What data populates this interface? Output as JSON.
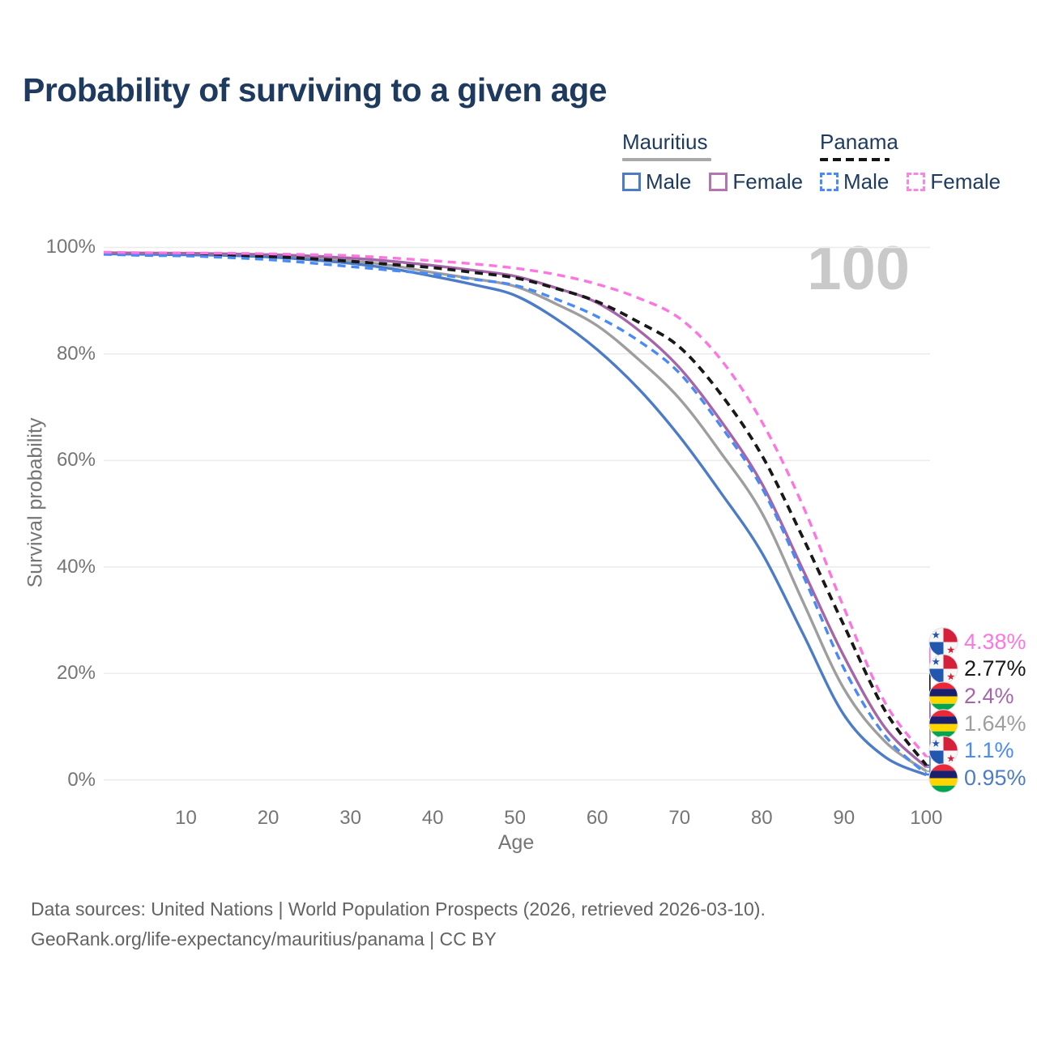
{
  "title": "Probability of surviving to a given age",
  "watermark": "100",
  "legend": {
    "groups": [
      {
        "name": "Mauritius",
        "line_style": "solid",
        "line_color": "#a9a9a9",
        "items": [
          {
            "label": "Male",
            "color": "#4d7cc7",
            "dash": false
          },
          {
            "label": "Female",
            "color": "#b573b3",
            "dash": false
          }
        ]
      },
      {
        "name": "Panama",
        "line_style": "dashed",
        "line_color": "#141414",
        "items": [
          {
            "label": "Male",
            "color": "#4a8af4",
            "dash": true
          },
          {
            "label": "Female",
            "color": "#fb85e4",
            "dash": true
          }
        ]
      }
    ]
  },
  "footer": {
    "line1": "Data sources: United Nations | World Population Prospects (2026, retrieved 2026-03-10).",
    "line2": "GeoRank.org/life-expectancy/mauritius/panama | CC BY"
  },
  "flags": {
    "mauritius": {
      "red": "#ea2839",
      "blue": "#1a206d",
      "yellow": "#ffd500",
      "green": "#00a551"
    },
    "panama": {
      "blue": "#2257b0",
      "red": "#d5203b",
      "white": "#f7f7f7"
    }
  },
  "chart_data": {
    "type": "line",
    "title": "Probability of surviving to a given age",
    "xlabel": "Age",
    "ylabel": "Survival probability",
    "xlim": [
      0,
      100
    ],
    "ylim": [
      0,
      100
    ],
    "x_ticks": [
      10,
      20,
      30,
      40,
      50,
      60,
      70,
      80,
      90,
      100
    ],
    "y_ticks": [
      0,
      20,
      40,
      60,
      80,
      100
    ],
    "y_tick_suffix": "%",
    "grid": "horizontal",
    "x": [
      0,
      5,
      10,
      15,
      20,
      25,
      30,
      35,
      40,
      45,
      50,
      55,
      60,
      65,
      70,
      75,
      80,
      85,
      90,
      95,
      100
    ],
    "series": [
      {
        "name": "Mauritius Male",
        "country": "mauritius",
        "color": "#4d7cc7",
        "dash": false,
        "values": [
          98.8,
          98.7,
          98.6,
          98.5,
          98.2,
          97.7,
          97.0,
          96.0,
          94.6,
          93.0,
          91.0,
          86.6,
          80.8,
          73.5,
          64.5,
          54.0,
          42.7,
          27.5,
          12.2,
          4.3,
          0.95
        ]
      },
      {
        "name": "Mauritius",
        "country": "mauritius",
        "color": "#9e9e9e",
        "dash": false,
        "values": [
          98.9,
          98.8,
          98.75,
          98.65,
          98.45,
          98.1,
          97.5,
          96.6,
          95.3,
          94.1,
          92.7,
          89.4,
          85.3,
          79.0,
          71.6,
          61.5,
          50.2,
          33.5,
          17.1,
          7.2,
          1.64
        ]
      },
      {
        "name": "Mauritius Female",
        "country": "mauritius",
        "color": "#a566a9",
        "dash": false,
        "values": [
          99.0,
          98.95,
          98.9,
          98.8,
          98.65,
          98.4,
          98.0,
          97.4,
          96.6,
          95.7,
          94.6,
          92.4,
          89.6,
          84.5,
          77.4,
          67.5,
          55.7,
          39.5,
          23.2,
          9.8,
          2.4
        ]
      },
      {
        "name": "Panama Male",
        "country": "panama",
        "color": "#4a8af4",
        "dash": true,
        "values": [
          98.7,
          98.5,
          98.4,
          98.1,
          97.7,
          97.1,
          96.4,
          95.7,
          95.0,
          94.0,
          92.9,
          90.3,
          87.0,
          82.5,
          76.4,
          66.5,
          54.9,
          38.5,
          20.9,
          8.3,
          1.1
        ]
      },
      {
        "name": "Panama",
        "country": "panama",
        "color": "#181818",
        "dash": true,
        "values": [
          98.9,
          98.75,
          98.65,
          98.5,
          98.3,
          97.9,
          97.4,
          96.8,
          96.2,
          95.3,
          94.3,
          92.3,
          89.8,
          86.0,
          81.3,
          72.5,
          61.0,
          45.5,
          29.0,
          13.0,
          2.77
        ]
      },
      {
        "name": "Panama Female",
        "country": "panama",
        "color": "#fb76e1",
        "dash": true,
        "values": [
          99.1,
          99.0,
          98.95,
          98.9,
          98.8,
          98.65,
          98.45,
          98.0,
          97.5,
          96.9,
          96.1,
          94.9,
          93.1,
          90.5,
          86.7,
          79.0,
          67.3,
          51.5,
          32.3,
          14.5,
          4.38
        ]
      }
    ],
    "end_labels": [
      {
        "series": 5,
        "text": "4.38%"
      },
      {
        "series": 4,
        "text": "2.77%"
      },
      {
        "series": 2,
        "text": "2.4%"
      },
      {
        "series": 1,
        "text": "1.64%"
      },
      {
        "series": 3,
        "text": "1.1%"
      },
      {
        "series": 0,
        "text": "0.95%"
      }
    ]
  }
}
